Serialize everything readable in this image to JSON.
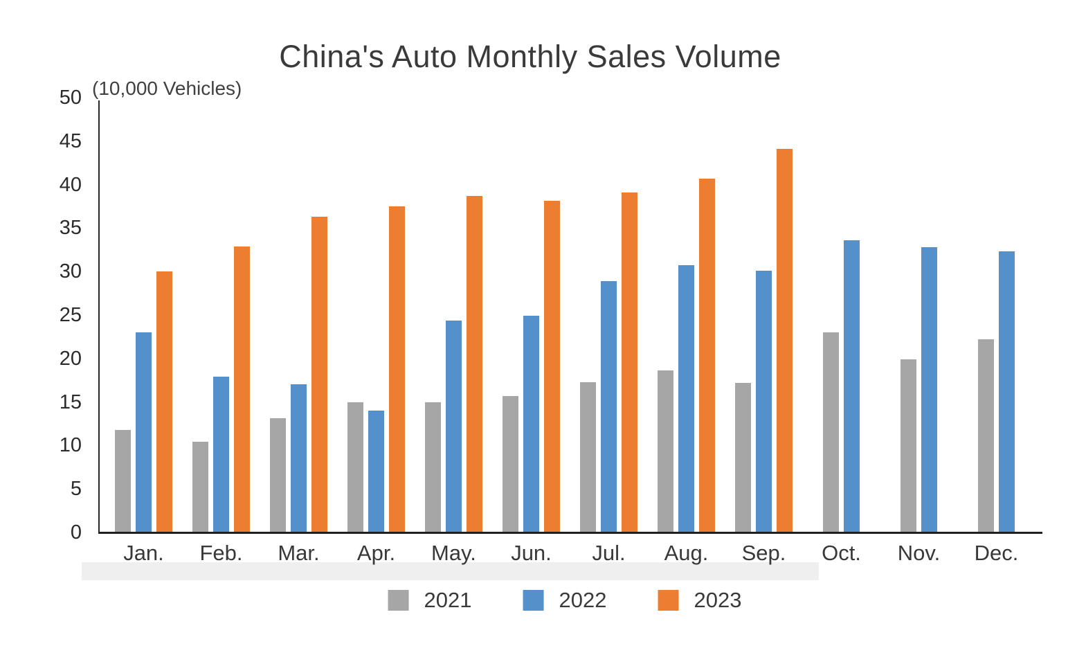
{
  "title": "China's Auto Monthly Sales Volume",
  "unit_label": "(10,000 Vehicles)",
  "chart_data": {
    "type": "bar",
    "title": "China's Auto Monthly Sales Volume",
    "ylabel": "(10,000 Vehicles)",
    "xlabel": "",
    "categories": [
      "Jan.",
      "Feb.",
      "Mar.",
      "Apr.",
      "May.",
      "Jun.",
      "Jul.",
      "Aug.",
      "Sep.",
      "Oct.",
      "Nov.",
      "Dec."
    ],
    "series": [
      {
        "name": "2021",
        "color": "#a6a6a6",
        "values": [
          11.8,
          10.4,
          13.1,
          15.0,
          15.0,
          15.7,
          17.3,
          18.6,
          17.2,
          23.0,
          19.9,
          22.2
        ]
      },
      {
        "name": "2022",
        "color": "#5590cb",
        "values": [
          23.0,
          17.9,
          17.0,
          14.0,
          24.4,
          24.9,
          28.9,
          30.7,
          30.1,
          33.6,
          32.8,
          32.3
        ]
      },
      {
        "name": "2023",
        "color": "#ed7d31",
        "values": [
          30.0,
          32.9,
          36.3,
          37.5,
          38.7,
          38.1,
          39.1,
          40.7,
          44.1,
          null,
          null,
          null
        ]
      }
    ],
    "ylim": [
      0,
      50
    ],
    "yticks": [
      0,
      5,
      10,
      15,
      20,
      25,
      30,
      35,
      40,
      45,
      50
    ],
    "grid": false,
    "legend_position": "bottom"
  },
  "legend": {
    "items": [
      {
        "label": "2021",
        "color": "#a6a6a6"
      },
      {
        "label": "2022",
        "color": "#5590cb"
      },
      {
        "label": "2023",
        "color": "#ed7d31"
      }
    ]
  }
}
